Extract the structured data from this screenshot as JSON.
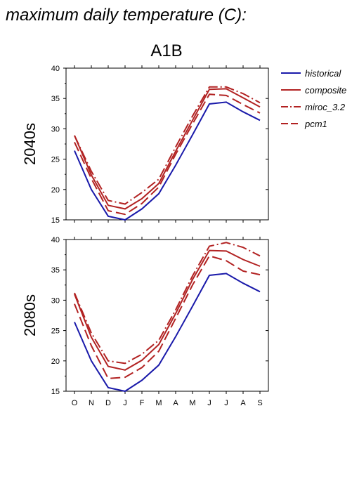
{
  "page": {
    "title": "maximum daily temperature (C):"
  },
  "chart_data": {
    "type": "line",
    "title": "A1B",
    "categories": [
      "O",
      "N",
      "D",
      "J",
      "F",
      "M",
      "A",
      "M",
      "J",
      "J",
      "A",
      "S"
    ],
    "ylim": [
      15,
      40
    ],
    "yticks": [
      15,
      20,
      25,
      30,
      35,
      40
    ],
    "legend": {
      "placement": "right",
      "entries": [
        {
          "name": "historical",
          "color": "#1a1aaa",
          "dash": "solid"
        },
        {
          "name": "composite",
          "color": "#b22222",
          "dash": "solid"
        },
        {
          "name": "miroc_3.2",
          "color": "#b22222",
          "dash": "dash-dot"
        },
        {
          "name": "pcm1",
          "color": "#b22222",
          "dash": "long-dash"
        }
      ]
    },
    "panels": [
      {
        "label": "2040s",
        "series": [
          {
            "name": "historical",
            "values": [
              26.4,
              20.0,
              15.6,
              15.0,
              16.8,
              19.3,
              24.0,
              29.0,
              34.1,
              34.4,
              32.8,
              31.4
            ]
          },
          {
            "name": "composite",
            "values": [
              28.9,
              22.4,
              17.4,
              16.8,
              18.5,
              21.0,
              26.3,
              31.4,
              36.5,
              36.6,
              35.1,
              33.6
            ]
          },
          {
            "name": "miroc_3.2",
            "values": [
              28.9,
              23.0,
              18.2,
              17.6,
              19.5,
              21.7,
              27.0,
              32.1,
              36.9,
              36.9,
              35.8,
              34.3
            ]
          },
          {
            "name": "pcm1",
            "values": [
              27.8,
              21.8,
              16.5,
              15.9,
              17.7,
              20.4,
              25.8,
              30.8,
              35.7,
              35.5,
              34.0,
              32.6
            ]
          }
        ]
      },
      {
        "label": "2080s",
        "series": [
          {
            "name": "historical",
            "values": [
              26.4,
              20.0,
              15.6,
              15.0,
              16.8,
              19.3,
              24.0,
              29.0,
              34.1,
              34.4,
              32.8,
              31.4
            ]
          },
          {
            "name": "composite",
            "values": [
              31.0,
              23.9,
              19.1,
              18.5,
              20.1,
              22.7,
              27.8,
              33.4,
              38.2,
              38.1,
              36.7,
              35.6
            ]
          },
          {
            "name": "miroc_3.2",
            "values": [
              31.2,
              24.6,
              20.0,
              19.6,
              21.1,
              23.4,
              28.4,
              34.0,
              38.9,
              39.5,
              38.7,
              37.3
            ]
          },
          {
            "name": "pcm1",
            "values": [
              29.4,
              22.5,
              17.1,
              17.3,
              18.9,
              21.6,
              27.0,
              32.5,
              37.3,
              36.5,
              34.8,
              34.2
            ]
          }
        ]
      }
    ]
  }
}
